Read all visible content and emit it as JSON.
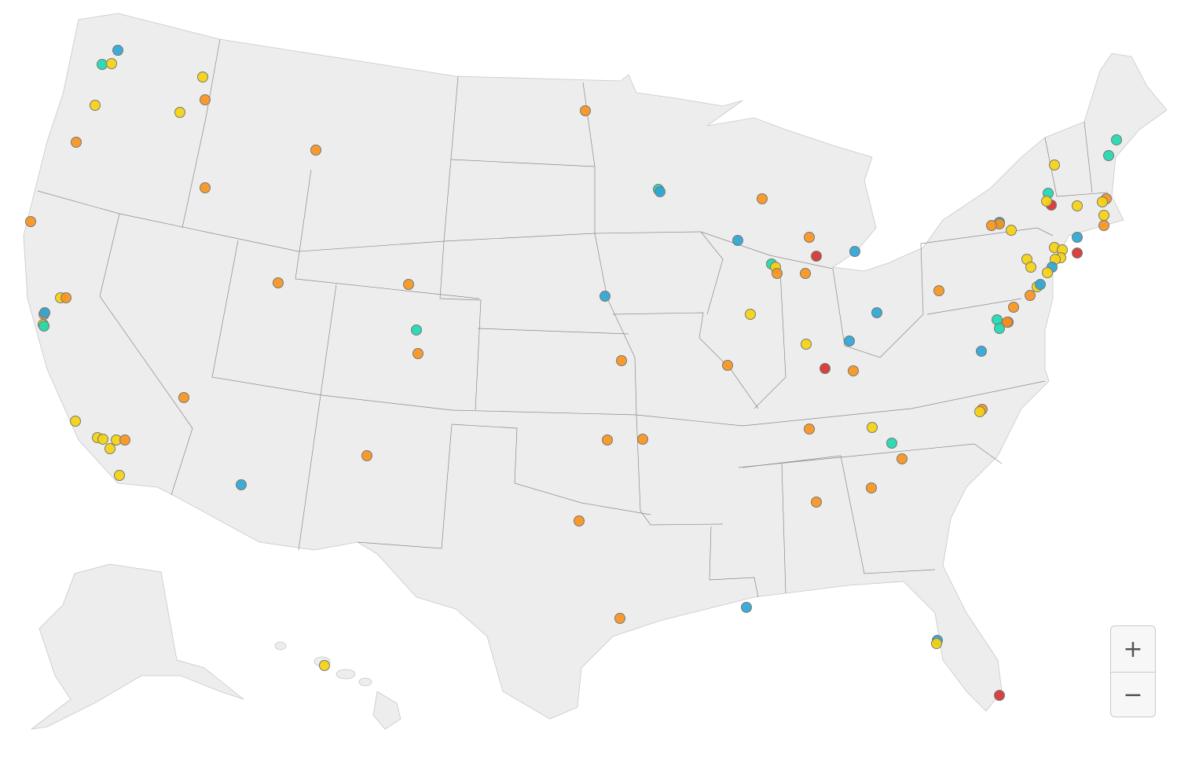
{
  "map": {
    "region": "United States",
    "marker_colors": {
      "orange": "#f7941d",
      "yellow": "#f5d20f",
      "teal": "#1ed9b0",
      "blue": "#2ca5d4",
      "red": "#d33330"
    },
    "land_color": "#ededed",
    "border_color": "#8a8a8a"
  },
  "zoom_controls": {
    "zoom_in_label": "+",
    "zoom_out_label": "−"
  }
}
